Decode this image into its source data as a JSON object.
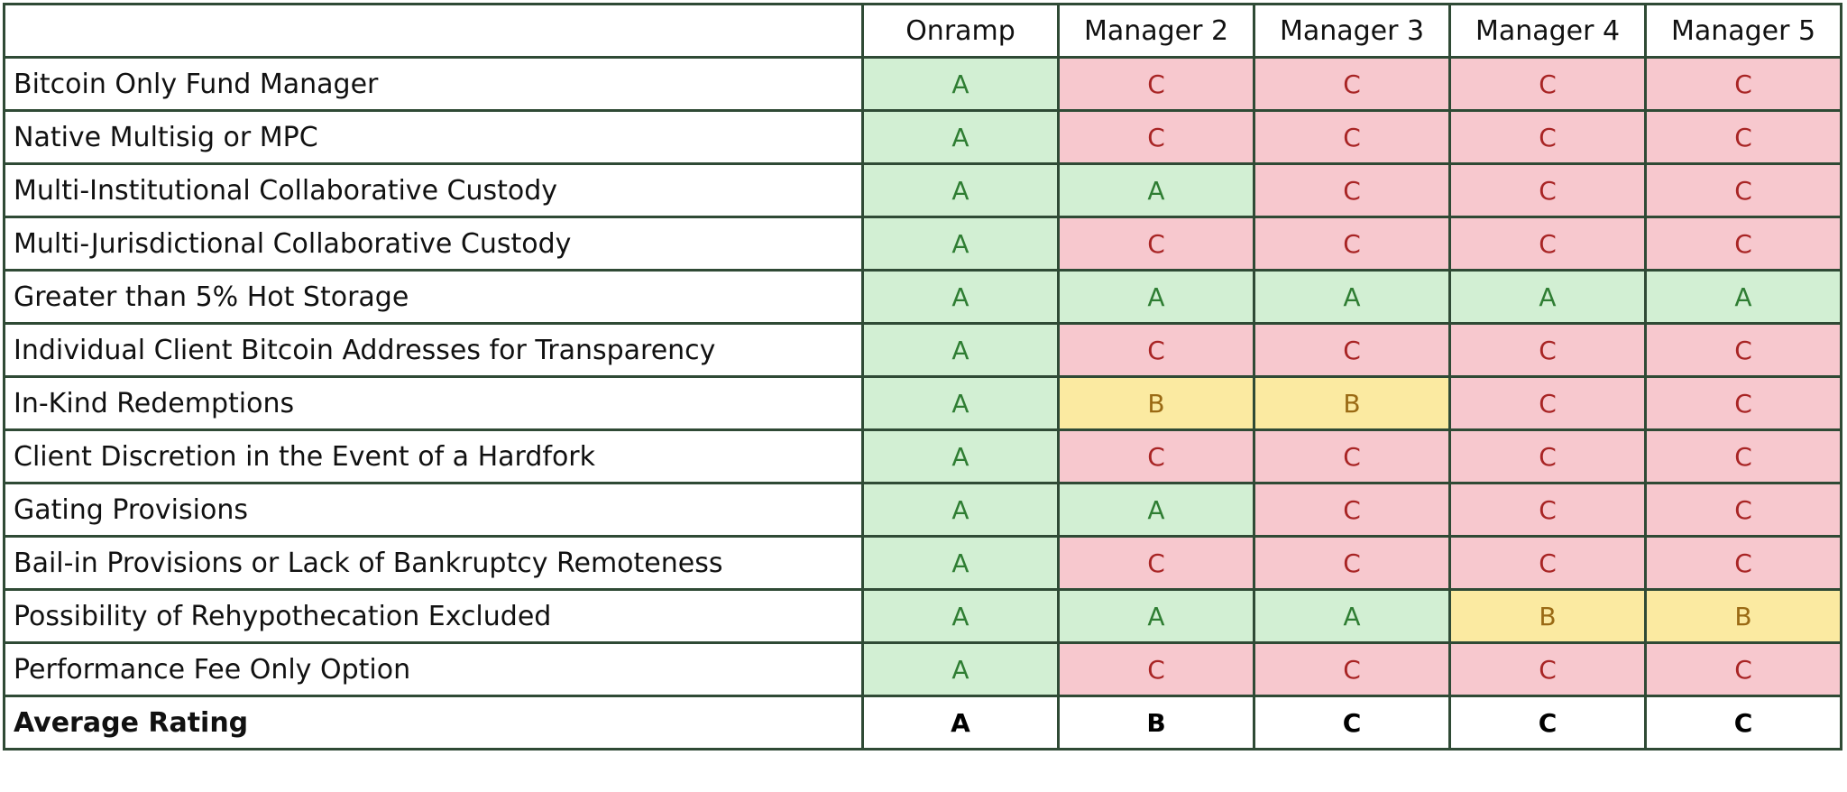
{
  "table": {
    "columns": [
      "",
      "Onramp",
      "Manager 2",
      "Manager 3",
      "Manager 4",
      "Manager 5"
    ],
    "rows": [
      {
        "feature": "Bitcoin Only Fund Manager",
        "grades": [
          "A",
          "C",
          "C",
          "C",
          "C"
        ]
      },
      {
        "feature": "Native Multisig or MPC",
        "grades": [
          "A",
          "C",
          "C",
          "C",
          "C"
        ]
      },
      {
        "feature": "Multi-Institutional Collaborative Custody",
        "grades": [
          "A",
          "A",
          "C",
          "C",
          "C"
        ]
      },
      {
        "feature": "Multi-Jurisdictional Collaborative Custody",
        "grades": [
          "A",
          "C",
          "C",
          "C",
          "C"
        ]
      },
      {
        "feature": "Greater than 5% Hot Storage",
        "grades": [
          "A",
          "A",
          "A",
          "A",
          "A"
        ]
      },
      {
        "feature": "Individual Client Bitcoin Addresses for Transparency",
        "grades": [
          "A",
          "C",
          "C",
          "C",
          "C"
        ]
      },
      {
        "feature": "In-Kind Redemptions",
        "grades": [
          "A",
          "B",
          "B",
          "C",
          "C"
        ]
      },
      {
        "feature": "Client Discretion in the Event of a Hardfork",
        "grades": [
          "A",
          "C",
          "C",
          "C",
          "C"
        ]
      },
      {
        "feature": "Gating Provisions",
        "grades": [
          "A",
          "A",
          "C",
          "C",
          "C"
        ]
      },
      {
        "feature": "Bail-in Provisions or Lack of Bankruptcy Remoteness",
        "grades": [
          "A",
          "C",
          "C",
          "C",
          "C"
        ]
      },
      {
        "feature": "Possibility of Rehypothecation Excluded",
        "grades": [
          "A",
          "A",
          "A",
          "B",
          "B"
        ]
      },
      {
        "feature": "Performance Fee Only Option",
        "grades": [
          "A",
          "C",
          "C",
          "C",
          "C"
        ]
      }
    ],
    "average": {
      "label": "Average Rating",
      "grades": [
        "A",
        "B",
        "C",
        "C",
        "C"
      ]
    }
  },
  "colors": {
    "A_fill": "#d2efd3",
    "A_text": "#2e7d32",
    "B_fill": "#fbeaa1",
    "B_text": "#9a6a14",
    "C_fill": "#f7c8ce",
    "C_text": "#a82424",
    "border": "#2f4a35"
  }
}
